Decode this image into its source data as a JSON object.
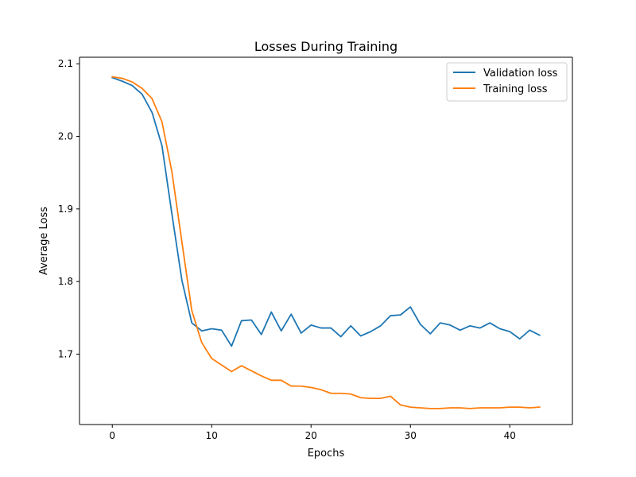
{
  "colors": {
    "validation": "#1f77b4",
    "training": "#ff7f0e",
    "axes": "#000000",
    "legend_border": "#cccccc"
  },
  "chart_data": {
    "type": "line",
    "title": "Losses During Training",
    "xlabel": "Epochs",
    "ylabel": "Average Loss",
    "xlim": [
      -3.3,
      46.3
    ],
    "ylim": [
      1.603,
      2.109
    ],
    "xticks": [
      0,
      10,
      20,
      30,
      40
    ],
    "yticks": [
      1.7,
      1.8,
      1.9,
      2.0,
      2.1
    ],
    "xtick_labels": [
      "0",
      "10",
      "20",
      "30",
      "40"
    ],
    "ytick_labels": [
      "1.7",
      "1.8",
      "1.9",
      "2.0",
      "2.1"
    ],
    "grid": false,
    "legend_position": "top-right",
    "x": [
      0,
      1,
      2,
      3,
      4,
      5,
      6,
      7,
      8,
      9,
      10,
      11,
      12,
      13,
      14,
      15,
      16,
      17,
      18,
      19,
      20,
      21,
      22,
      23,
      24,
      25,
      26,
      27,
      28,
      29,
      30,
      31,
      32,
      33,
      34,
      35,
      36,
      37,
      38,
      39,
      40,
      41,
      42,
      43
    ],
    "series": [
      {
        "name": "Validation loss",
        "color": "#1f77b4",
        "values": [
          2.081,
          2.076,
          2.07,
          2.058,
          2.033,
          1.987,
          1.893,
          1.802,
          1.743,
          1.732,
          1.735,
          1.733,
          1.711,
          1.746,
          1.747,
          1.727,
          1.758,
          1.732,
          1.755,
          1.729,
          1.74,
          1.736,
          1.736,
          1.724,
          1.739,
          1.725,
          1.731,
          1.739,
          1.753,
          1.754,
          1.765,
          1.741,
          1.728,
          1.743,
          1.74,
          1.733,
          1.739,
          1.736,
          1.743,
          1.735,
          1.731,
          1.721,
          1.733,
          1.726
        ]
      },
      {
        "name": "Training loss",
        "color": "#ff7f0e",
        "values": [
          2.082,
          2.08,
          2.075,
          2.066,
          2.052,
          2.02,
          1.951,
          1.855,
          1.76,
          1.716,
          1.694,
          1.685,
          1.676,
          1.684,
          1.677,
          1.67,
          1.664,
          1.664,
          1.656,
          1.656,
          1.654,
          1.651,
          1.646,
          1.646,
          1.645,
          1.64,
          1.639,
          1.639,
          1.642,
          1.63,
          1.627,
          1.626,
          1.625,
          1.625,
          1.626,
          1.626,
          1.625,
          1.626,
          1.626,
          1.626,
          1.627,
          1.627,
          1.626,
          1.627
        ]
      }
    ]
  }
}
